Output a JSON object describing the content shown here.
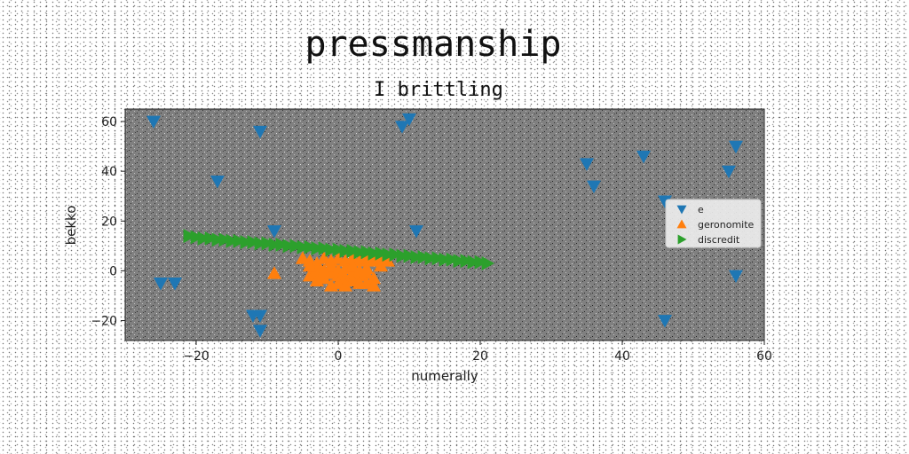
{
  "chart_data": {
    "type": "scatter",
    "title": "pressmanship",
    "subtitle": "I brittling",
    "xlabel": "numerally",
    "ylabel": "bekko",
    "xlim": [
      -30,
      60
    ],
    "ylim": [
      -28,
      65
    ],
    "xticks": [
      -20,
      0,
      20,
      40,
      60
    ],
    "yticks": [
      -20,
      0,
      20,
      40,
      60
    ],
    "legend_position": "center-right",
    "grid": false,
    "axes_background": "#808080",
    "series": [
      {
        "name": "e",
        "marker": "triangle-down",
        "color": "#1f77b4",
        "points": [
          [
            -26,
            60
          ],
          [
            -11,
            56
          ],
          [
            10,
            61
          ],
          [
            9,
            58
          ],
          [
            -17,
            36
          ],
          [
            -9,
            16
          ],
          [
            11,
            16
          ],
          [
            -25,
            -5
          ],
          [
            -23,
            -5
          ],
          [
            -12,
            -18
          ],
          [
            -11,
            -18
          ],
          [
            -11,
            -24
          ],
          [
            35,
            43
          ],
          [
            36,
            34
          ],
          [
            43,
            46
          ],
          [
            46,
            28
          ],
          [
            55,
            40
          ],
          [
            56,
            50
          ],
          [
            56,
            -2
          ],
          [
            46,
            -20
          ]
        ]
      },
      {
        "name": "geronomite",
        "marker": "triangle-up",
        "color": "#ff7f0e",
        "points": [
          [
            -9,
            -1
          ],
          [
            -5,
            5
          ],
          [
            -4,
            4
          ],
          [
            -3,
            3
          ],
          [
            -2,
            5
          ],
          [
            -1,
            4
          ],
          [
            0,
            5
          ],
          [
            1,
            4
          ],
          [
            2,
            5
          ],
          [
            3,
            4
          ],
          [
            4,
            5
          ],
          [
            5,
            4
          ],
          [
            6,
            5
          ],
          [
            7,
            4
          ],
          [
            -4,
            -2
          ],
          [
            -3,
            -1
          ],
          [
            -2,
            -3
          ],
          [
            -1,
            -1
          ],
          [
            0,
            -2
          ],
          [
            1,
            -3
          ],
          [
            2,
            -1
          ],
          [
            3,
            -2
          ],
          [
            4,
            -1
          ],
          [
            5,
            -3
          ],
          [
            -3,
            1
          ],
          [
            -1,
            2
          ],
          [
            0,
            0
          ],
          [
            1,
            1
          ],
          [
            2,
            2
          ],
          [
            3,
            0
          ],
          [
            4,
            1
          ],
          [
            -2,
            0
          ],
          [
            0,
            -5
          ],
          [
            -1,
            -6
          ],
          [
            1,
            -6
          ],
          [
            -3,
            -4
          ],
          [
            4,
            -5
          ],
          [
            5,
            -6
          ],
          [
            2,
            -4
          ],
          [
            3,
            -5
          ],
          [
            -4,
            2
          ],
          [
            6,
            2
          ]
        ]
      },
      {
        "name": "discredit",
        "marker": "triangle-right",
        "color": "#2ca02c",
        "points": [
          [
            -21,
            14
          ],
          [
            -20,
            13.5
          ],
          [
            -19,
            13
          ],
          [
            -18,
            13
          ],
          [
            -17,
            12.5
          ],
          [
            -16,
            12.5
          ],
          [
            -15,
            12
          ],
          [
            -14,
            12
          ],
          [
            -13,
            11.5
          ],
          [
            -12,
            11.5
          ],
          [
            -11,
            11
          ],
          [
            -10,
            11
          ],
          [
            -9,
            10.5
          ],
          [
            -8,
            10.5
          ],
          [
            -7,
            10
          ],
          [
            -6,
            10
          ],
          [
            -5,
            9.5
          ],
          [
            -4,
            9.5
          ],
          [
            -3,
            9
          ],
          [
            -2,
            9
          ],
          [
            -1,
            8.5
          ],
          [
            0,
            8.5
          ],
          [
            1,
            8
          ],
          [
            2,
            8
          ],
          [
            3,
            7.5
          ],
          [
            4,
            7.5
          ],
          [
            5,
            7
          ],
          [
            6,
            7
          ],
          [
            7,
            6.5
          ],
          [
            8,
            6.5
          ],
          [
            9,
            6
          ],
          [
            10,
            6
          ],
          [
            11,
            5.5
          ],
          [
            12,
            5.5
          ],
          [
            13,
            5
          ],
          [
            14,
            5
          ],
          [
            15,
            4.5
          ],
          [
            16,
            4.5
          ],
          [
            17,
            4
          ],
          [
            18,
            4
          ],
          [
            19,
            3.5
          ],
          [
            20,
            3.5
          ],
          [
            21,
            3
          ]
        ]
      }
    ]
  }
}
